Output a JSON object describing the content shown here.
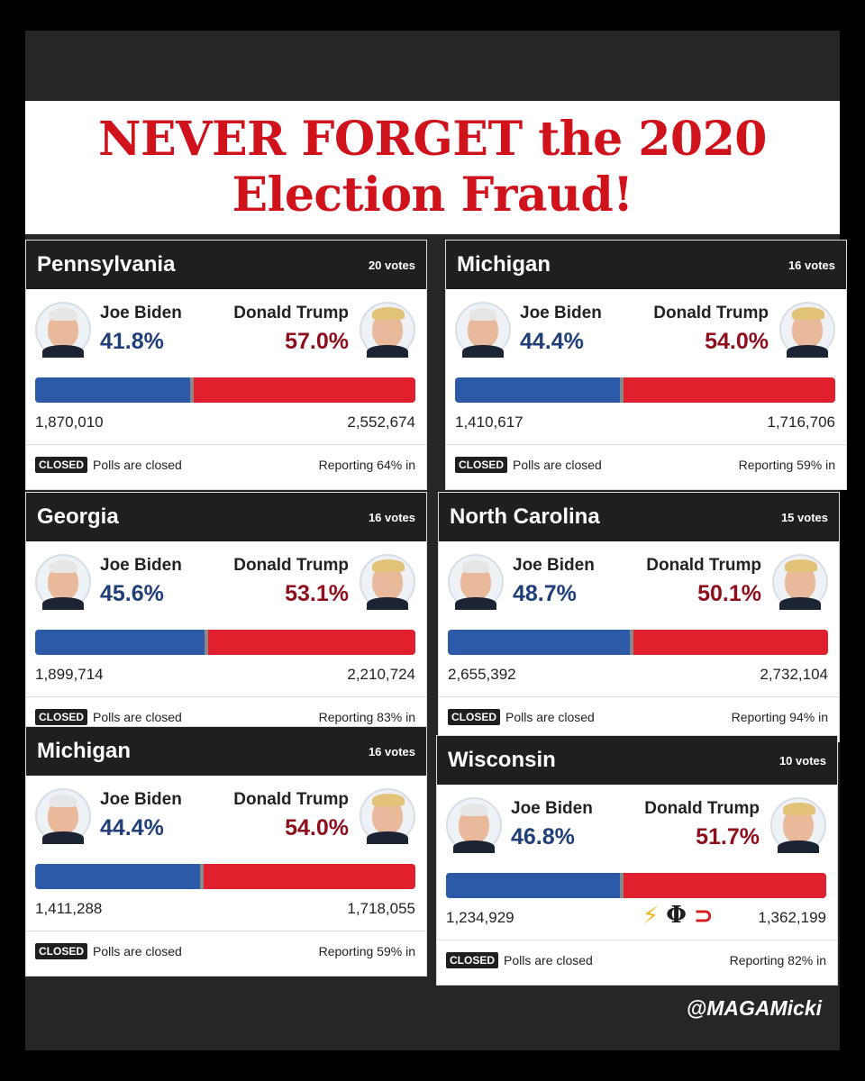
{
  "title_lines": [
    "NEVER FORGET the 2020",
    "Election Fraud!"
  ],
  "handle": "@MAGAMicki",
  "badge_label": "CLOSED",
  "polls_text": "Polls are closed",
  "cards": [
    {
      "state": "Pennsylvania",
      "votes": "20 votes",
      "biden": {
        "name": "Joe Biden",
        "pct": "41.8%",
        "count": "1,870,010"
      },
      "trump": {
        "name": "Donald Trump",
        "pct": "57.0%",
        "count": "2,552,674"
      },
      "biden_share": 0.418,
      "reporting": "Reporting 64% in"
    },
    {
      "state": "Michigan",
      "votes": "16 votes",
      "biden": {
        "name": "Joe Biden",
        "pct": "44.4%",
        "count": "1,410,617"
      },
      "trump": {
        "name": "Donald Trump",
        "pct": "54.0%",
        "count": "1,716,706"
      },
      "biden_share": 0.444,
      "reporting": "Reporting 59% in"
    },
    {
      "state": "Georgia",
      "votes": "16 votes",
      "biden": {
        "name": "Joe Biden",
        "pct": "45.6%",
        "count": "1,899,714"
      },
      "trump": {
        "name": "Donald Trump",
        "pct": "53.1%",
        "count": "2,210,724"
      },
      "biden_share": 0.456,
      "reporting": "Reporting 83% in"
    },
    {
      "state": "North Carolina",
      "votes": "15 votes",
      "biden": {
        "name": "Joe Biden",
        "pct": "48.7%",
        "count": "2,655,392"
      },
      "trump": {
        "name": "Donald Trump",
        "pct": "50.1%",
        "count": "2,732,104"
      },
      "biden_share": 0.487,
      "reporting": "Reporting 94% in"
    },
    {
      "state": "Michigan",
      "votes": "16 votes",
      "biden": {
        "name": "Joe Biden",
        "pct": "44.4%",
        "count": "1,411,288"
      },
      "trump": {
        "name": "Donald Trump",
        "pct": "54.0%",
        "count": "1,718,055"
      },
      "biden_share": 0.444,
      "reporting": "Reporting 59% in"
    },
    {
      "state": "Wisconsin",
      "votes": "10 votes",
      "biden": {
        "name": "Joe Biden",
        "pct": "46.8%",
        "count": "1,234,929"
      },
      "trump": {
        "name": "Donald Trump",
        "pct": "51.7%",
        "count": "1,362,199"
      },
      "biden_share": 0.468,
      "reporting": "Reporting 82% in"
    }
  ],
  "emojis": {
    "bolt": "⚡",
    "phi": "Φ",
    "magnet": "⊃"
  },
  "colors": {
    "title_red": "#d0121b",
    "biden_blue": "#2a5aa8",
    "trump_red": "#e0202c"
  }
}
